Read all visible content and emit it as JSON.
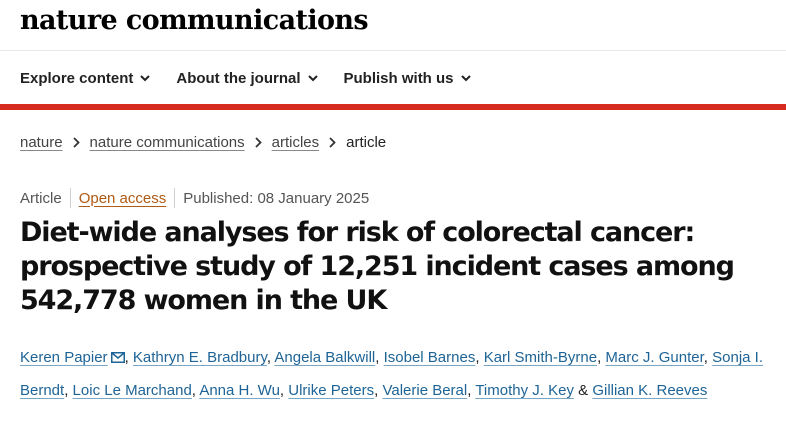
{
  "header": {
    "brand": "nature communications",
    "nav": [
      {
        "label": "Explore content"
      },
      {
        "label": "About the journal"
      },
      {
        "label": "Publish with us"
      }
    ]
  },
  "breadcrumb": {
    "items": [
      "nature",
      "nature communications",
      "articles"
    ],
    "current": "article"
  },
  "article": {
    "type": "Article",
    "access": "Open access",
    "published": "Published: 08 January 2025",
    "title": "Diet-wide analyses for risk of colorectal cancer: prospective study of 12,251 incident cases among 542,778 women in the UK",
    "authors": [
      "Keren Papier",
      "Kathryn E. Bradbury",
      "Angela Balkwill",
      "Isobel Barnes",
      "Karl Smith-Byrne",
      "Marc J. Gunter",
      "Sonja I. Berndt",
      "Loic Le Marchand",
      "Anna H. Wu",
      "Ulrike Peters",
      "Valerie Beral",
      "Timothy J. Key",
      "Gillian K. Reeves"
    ],
    "ampersand": "&",
    "comma": ","
  },
  "icons": {
    "nav_dropdown": "chevron-down-icon",
    "breadcrumb_separator": "chevron-right-icon",
    "corresponding_author": "mail-icon"
  },
  "colors": {
    "accent_bar": "#d62b1f",
    "author_link": "#1e6496",
    "open_access": "#b05a14"
  }
}
